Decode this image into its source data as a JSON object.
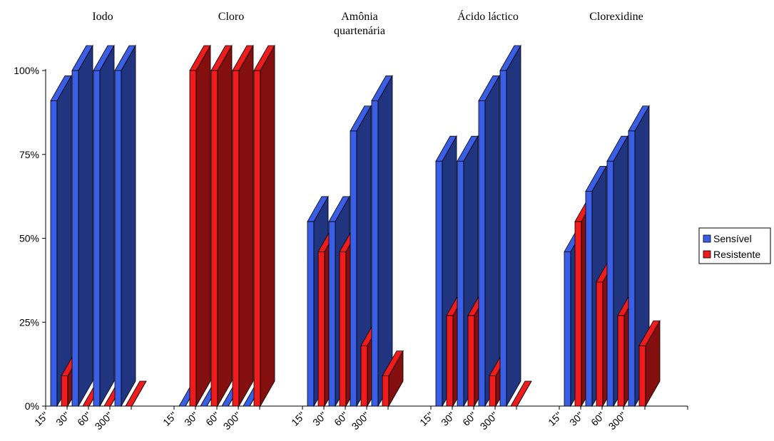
{
  "chart_data": {
    "type": "bar",
    "style": "3d-clustered",
    "groups": [
      "Iodo",
      "Cloro",
      "Amônia quartenária",
      "Ácido láctico",
      "Clorexidine"
    ],
    "group_title_lines": [
      [
        "Iodo"
      ],
      [
        "Cloro"
      ],
      [
        "Amônia",
        "quartenária"
      ],
      [
        "Ácido láctico"
      ],
      [
        "Clorexidine"
      ]
    ],
    "categories": [
      "15''",
      "30''",
      "60''",
      "300''"
    ],
    "series": [
      {
        "name": "Sensível",
        "color": "#3a5fe6",
        "values": [
          [
            91,
            100,
            100,
            100
          ],
          [
            0,
            0,
            0,
            0
          ],
          [
            55,
            55,
            82,
            91
          ],
          [
            73,
            73,
            91,
            100
          ],
          [
            46,
            64,
            73,
            82
          ]
        ]
      },
      {
        "name": "Resistente",
        "color": "#ee1c1c",
        "values": [
          [
            9,
            0,
            0,
            0
          ],
          [
            100,
            100,
            100,
            100
          ],
          [
            46,
            46,
            18,
            9
          ],
          [
            27,
            27,
            9,
            0
          ],
          [
            55,
            37,
            27,
            18
          ]
        ]
      }
    ],
    "y_ticks": [
      "0%",
      "25%",
      "50%",
      "75%",
      "100%"
    ],
    "ylim": [
      0,
      100
    ],
    "y_unit": "%",
    "grid": false,
    "legend_position": "right"
  }
}
